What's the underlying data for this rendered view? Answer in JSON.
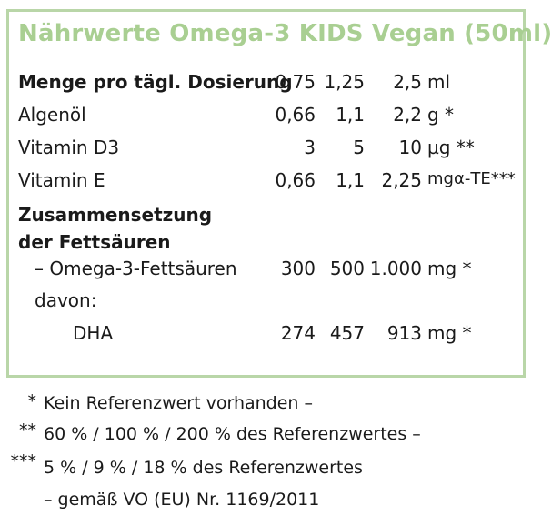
{
  "title": "Nährwerte Omega-3 KIDS Vegan (50ml)",
  "rows": [
    {
      "label": "Menge pro tägl. Dosierung",
      "v1": "0,75",
      "v2": "1,25",
      "v3": "2,5",
      "unit": "ml"
    },
    {
      "label": "Algenöl",
      "v1": "0,66",
      "v2": "1,1",
      "v3": "2,2",
      "unit": "g *"
    },
    {
      "label": "Vitamin D3",
      "v1": "3",
      "v2": "5",
      "v3": "10",
      "unit": "µg **"
    },
    {
      "label": "Vitamin E",
      "v1": "0,66",
      "v2": "1,1",
      "v3": "2,25",
      "unit": "mgα-TE***"
    },
    {
      "label": "Zusammensetzung"
    },
    {
      "label": "der Fettsäuren"
    },
    {
      "label": "– Omega-3-Fettsäuren",
      "v1": "300",
      "v2": "500",
      "v3": "1.000",
      "unit": "mg *"
    },
    {
      "label": "davon:"
    },
    {
      "label": "DHA",
      "v1": "274",
      "v2": "457",
      "v3": "913",
      "unit": "mg *"
    }
  ],
  "footnotes": [
    {
      "mark": "*",
      "text": "Kein Referenzwert vorhanden –"
    },
    {
      "mark": "**",
      "text": "60 % / 100 % / 200 % des Referenzwertes –"
    },
    {
      "mark": "***",
      "text": "5 % / 9 % / 18 % des Referenzwertes"
    },
    {
      "mark": "",
      "text": "– gemäß VO (EU) Nr. 1169/2011"
    }
  ]
}
